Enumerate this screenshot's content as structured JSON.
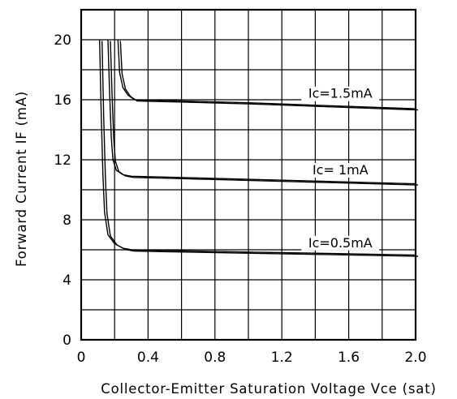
{
  "chart_data": {
    "type": "line",
    "xlabel": "Collector-Emitter Saturation Voltage Vce (sat)",
    "ylabel": "Forward Current IF (mA)",
    "xlim": [
      0,
      2.0
    ],
    "ylim": [
      0,
      22
    ],
    "x_ticks": [
      "0",
      "0.4",
      "0.8",
      "1.2",
      "1.6",
      "2.0"
    ],
    "y_ticks": [
      "0",
      "4",
      "8",
      "12",
      "16",
      "20"
    ],
    "grid": true,
    "series": [
      {
        "name": "Ic=1.5mA",
        "x": [
          0.22,
          0.23,
          0.25,
          0.28,
          0.32,
          0.5,
          1.0,
          1.5,
          2.0
        ],
        "y": [
          20,
          17.8,
          16.8,
          16.3,
          16.0,
          15.95,
          15.8,
          15.6,
          15.4
        ]
      },
      {
        "name": "Ic=  1mA",
        "x": [
          0.16,
          0.17,
          0.18,
          0.19,
          0.21,
          0.25,
          0.3,
          0.5,
          1.0,
          1.5,
          2.0
        ],
        "y": [
          20,
          16.5,
          13.5,
          12.0,
          11.3,
          11.0,
          10.9,
          10.85,
          10.7,
          10.55,
          10.4
        ]
      },
      {
        "name": "Ic=0.5mA",
        "x": [
          0.11,
          0.12,
          0.13,
          0.14,
          0.16,
          0.2,
          0.25,
          0.3,
          0.5,
          1.0,
          1.5,
          2.0
        ],
        "y": [
          20,
          15.0,
          11.0,
          8.5,
          7.0,
          6.4,
          6.1,
          6.0,
          5.95,
          5.85,
          5.75,
          5.65
        ]
      }
    ],
    "annotations": [
      "Ic=1.5mA",
      "Ic=  1mA",
      "Ic=0.5mA"
    ]
  }
}
